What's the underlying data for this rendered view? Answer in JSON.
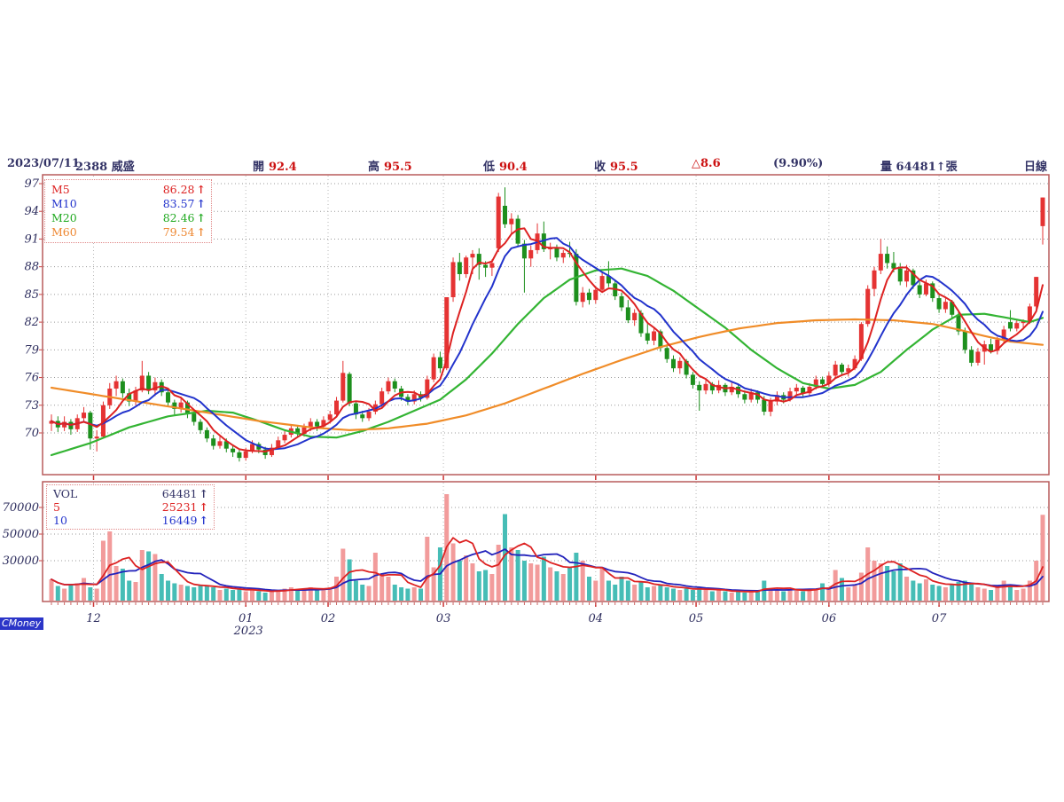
{
  "header": {
    "date": "2023/07/11",
    "stock": "2388 威盛",
    "open_label": "開",
    "open": "92.4",
    "high_label": "高",
    "high": "95.5",
    "low_label": "低",
    "low": "90.4",
    "close_label": "收",
    "close": "95.5",
    "change": "△8.6",
    "change_pct": "(9.90%)",
    "volume_text": "量 64481↑張",
    "period": "日線"
  },
  "price_legend": [
    {
      "label": "M5",
      "value": "86.28",
      "arrow": "↑",
      "color": "#dd2222"
    },
    {
      "label": "M10",
      "value": "83.57",
      "arrow": "↑",
      "color": "#2233cc"
    },
    {
      "label": "M20",
      "value": "82.46",
      "arrow": "↑",
      "color": "#22aa22"
    },
    {
      "label": "M60",
      "value": "79.54",
      "arrow": "↑",
      "color": "#ee8833"
    }
  ],
  "volume_legend": [
    {
      "label": "VOL",
      "value": "64481",
      "arrow": "↑",
      "color": "#333366"
    },
    {
      "label": "5",
      "value": "25231",
      "arrow": "↑",
      "color": "#dd2222"
    },
    {
      "label": "10",
      "value": "16449",
      "arrow": "↑",
      "color": "#2233cc"
    }
  ],
  "watermark": "CMoney",
  "colors": {
    "up": "#e53333",
    "down": "#1d8f1d",
    "ma5": "#dd2222",
    "ma10": "#2233cc",
    "ma20": "#33b433",
    "ma60": "#f08c28",
    "vol_up": "#f29b9b",
    "vol_down": "#46bdb6",
    "vma5": "#dd2222",
    "vma10": "#2222bb",
    "panel_border": "#b85c5c",
    "grid": "#9a9a9a",
    "tick": "#cc4444",
    "axis_text": "#2e2e5e"
  },
  "chart_data": {
    "type": "candlestick+volume",
    "title": "2388 威盛 日線",
    "y_ticks": [
      97,
      94,
      91,
      88,
      85,
      82,
      79,
      76,
      73,
      70
    ],
    "price_range": [
      65.5,
      98.0
    ],
    "volume_ticks": [
      70000,
      50000,
      30000
    ],
    "volume_range": [
      0,
      89000
    ],
    "year_label": "2023",
    "months": [
      {
        "label": "12",
        "day": 6.5
      },
      {
        "label": "01",
        "day": 30,
        "year": "2023"
      },
      {
        "label": "02",
        "day": 42.7
      },
      {
        "label": "03",
        "day": 60.5
      },
      {
        "label": "04",
        "day": 84
      },
      {
        "label": "05",
        "day": 99.5
      },
      {
        "label": "06",
        "day": 120
      },
      {
        "label": "07",
        "day": 137
      }
    ],
    "candles": [
      [
        71.0,
        72.0,
        70.2,
        71.3,
        16000
      ],
      [
        71.3,
        71.8,
        70.1,
        70.6,
        11000
      ],
      [
        70.6,
        71.8,
        70.2,
        71.2,
        9000
      ],
      [
        71.2,
        71.5,
        69.8,
        70.4,
        12000
      ],
      [
        70.4,
        72.0,
        70.1,
        71.6,
        13000
      ],
      [
        71.6,
        72.8,
        71.2,
        72.2,
        17000
      ],
      [
        72.2,
        72.4,
        68.2,
        69.4,
        10000
      ],
      [
        69.4,
        70.3,
        68.0,
        69.6,
        9000
      ],
      [
        69.6,
        73.4,
        69.5,
        73.0,
        45000
      ],
      [
        73.0,
        75.4,
        72.6,
        74.8,
        52000
      ],
      [
        74.8,
        76.2,
        74.0,
        75.6,
        26000
      ],
      [
        75.6,
        75.9,
        73.8,
        74.3,
        24000
      ],
      [
        74.3,
        74.8,
        72.9,
        73.4,
        15000
      ],
      [
        73.4,
        75.0,
        73.0,
        74.6,
        14000
      ],
      [
        74.6,
        77.8,
        74.4,
        76.2,
        38000
      ],
      [
        76.2,
        76.6,
        74.2,
        74.6,
        37000
      ],
      [
        74.6,
        76.0,
        74.0,
        75.5,
        35000
      ],
      [
        75.5,
        75.8,
        74.0,
        74.4,
        20000
      ],
      [
        74.4,
        74.6,
        72.8,
        73.3,
        15000
      ],
      [
        73.3,
        73.6,
        72.0,
        72.6,
        13000
      ],
      [
        72.6,
        73.8,
        72.2,
        73.3,
        12000
      ],
      [
        73.3,
        73.5,
        71.6,
        72.1,
        11000
      ],
      [
        72.1,
        72.4,
        70.8,
        71.2,
        10000
      ],
      [
        71.2,
        71.5,
        69.9,
        70.3,
        12000
      ],
      [
        70.3,
        70.6,
        69.0,
        69.4,
        11000
      ],
      [
        69.4,
        69.8,
        68.2,
        68.6,
        10000
      ],
      [
        68.6,
        69.6,
        68.3,
        69.1,
        8000
      ],
      [
        69.1,
        69.4,
        67.9,
        68.3,
        9000
      ],
      [
        68.3,
        68.6,
        67.4,
        67.9,
        8000
      ],
      [
        67.9,
        68.2,
        66.9,
        67.3,
        9000
      ],
      [
        67.3,
        68.4,
        67.0,
        68.0,
        7000
      ],
      [
        68.0,
        69.2,
        67.8,
        68.8,
        8000
      ],
      [
        68.8,
        69.0,
        67.8,
        68.2,
        7000
      ],
      [
        68.2,
        68.5,
        67.2,
        67.6,
        6000
      ],
      [
        67.6,
        68.8,
        67.4,
        68.4,
        7000
      ],
      [
        68.4,
        69.6,
        68.2,
        69.2,
        8000
      ],
      [
        69.2,
        70.2,
        68.9,
        69.8,
        9000
      ],
      [
        69.8,
        70.9,
        69.5,
        70.5,
        10000
      ],
      [
        70.5,
        70.8,
        69.5,
        69.9,
        8000
      ],
      [
        69.9,
        71.0,
        69.6,
        70.6,
        9000
      ],
      [
        70.6,
        71.6,
        70.2,
        71.2,
        10000
      ],
      [
        71.2,
        71.5,
        70.2,
        70.7,
        8000
      ],
      [
        70.7,
        71.8,
        70.4,
        71.4,
        9000
      ],
      [
        71.4,
        72.4,
        71.0,
        72.0,
        10000
      ],
      [
        72.0,
        73.9,
        71.8,
        73.5,
        18000
      ],
      [
        73.5,
        77.8,
        73.3,
        76.5,
        39000
      ],
      [
        76.4,
        76.6,
        72.9,
        73.2,
        31000
      ],
      [
        73.2,
        73.5,
        71.5,
        72.0,
        15000
      ],
      [
        72.0,
        72.4,
        71.2,
        71.6,
        12000
      ],
      [
        71.6,
        72.7,
        71.3,
        72.3,
        11000
      ],
      [
        72.3,
        73.5,
        72.0,
        73.1,
        36000
      ],
      [
        73.1,
        74.9,
        72.8,
        74.5,
        20000
      ],
      [
        74.5,
        76.0,
        74.2,
        75.6,
        18000
      ],
      [
        75.6,
        75.9,
        74.4,
        74.8,
        12000
      ],
      [
        74.8,
        75.1,
        73.5,
        73.9,
        10000
      ],
      [
        73.9,
        74.2,
        73.0,
        73.4,
        9000
      ],
      [
        73.4,
        74.6,
        73.1,
        74.2,
        10000
      ],
      [
        74.2,
        74.5,
        73.4,
        73.8,
        9000
      ],
      [
        73.8,
        76.2,
        73.6,
        75.8,
        48000
      ],
      [
        75.8,
        78.6,
        75.5,
        78.2,
        25000
      ],
      [
        78.2,
        78.8,
        76.5,
        77.0,
        40000
      ],
      [
        77.0,
        84.7,
        76.8,
        84.7,
        80000
      ],
      [
        84.7,
        89.0,
        84.2,
        88.5,
        43000
      ],
      [
        88.5,
        89.5,
        86.5,
        87.2,
        30000
      ],
      [
        87.2,
        89.2,
        86.8,
        89.0,
        34000
      ],
      [
        89.0,
        89.8,
        87.2,
        89.4,
        28000
      ],
      [
        89.4,
        90.0,
        86.6,
        88.2,
        22000
      ],
      [
        88.2,
        88.6,
        86.9,
        87.9,
        23000
      ],
      [
        87.9,
        88.8,
        87.0,
        88.4,
        20000
      ],
      [
        90.0,
        96.0,
        89.6,
        95.6,
        42000
      ],
      [
        94.6,
        96.6,
        92.2,
        92.6,
        65000
      ],
      [
        92.6,
        93.8,
        91.5,
        93.2,
        40000
      ],
      [
        93.2,
        93.6,
        90.2,
        90.5,
        38000
      ],
      [
        90.5,
        90.9,
        85.2,
        88.9,
        30000
      ],
      [
        88.9,
        90.3,
        88.0,
        89.8,
        28000
      ],
      [
        89.8,
        92.7,
        89.4,
        91.6,
        27000
      ],
      [
        91.6,
        92.9,
        89.6,
        89.9,
        33000
      ],
      [
        89.9,
        90.6,
        88.8,
        90.0,
        25000
      ],
      [
        90.0,
        90.4,
        88.6,
        89.0,
        22000
      ],
      [
        89.0,
        89.8,
        88.4,
        89.5,
        20000
      ],
      [
        89.5,
        90.7,
        89.0,
        89.4,
        25000
      ],
      [
        89.4,
        89.9,
        83.8,
        84.2,
        36000
      ],
      [
        84.2,
        85.8,
        83.6,
        85.2,
        30000
      ],
      [
        85.2,
        85.6,
        83.9,
        84.4,
        18000
      ],
      [
        84.4,
        85.9,
        84.0,
        85.5,
        15000
      ],
      [
        85.5,
        87.4,
        85.2,
        87.0,
        25000
      ],
      [
        87.0,
        88.6,
        85.8,
        86.2,
        15000
      ],
      [
        86.2,
        86.6,
        84.4,
        84.8,
        12000
      ],
      [
        84.8,
        85.2,
        83.2,
        83.6,
        18000
      ],
      [
        83.6,
        84.4,
        81.9,
        82.2,
        15000
      ],
      [
        82.2,
        83.4,
        81.6,
        83.0,
        12000
      ],
      [
        83.0,
        83.3,
        80.4,
        80.8,
        14000
      ],
      [
        80.8,
        81.8,
        79.6,
        80.0,
        10000
      ],
      [
        80.0,
        81.4,
        79.5,
        81.0,
        11000
      ],
      [
        81.0,
        81.2,
        78.8,
        79.2,
        12000
      ],
      [
        79.2,
        79.6,
        77.6,
        78.0,
        10000
      ],
      [
        78.0,
        78.4,
        76.6,
        77.0,
        9000
      ],
      [
        77.0,
        78.2,
        76.4,
        77.8,
        8000
      ],
      [
        77.8,
        78.0,
        75.9,
        76.3,
        9000
      ],
      [
        76.3,
        76.6,
        74.8,
        75.2,
        8000
      ],
      [
        75.2,
        75.6,
        72.4,
        74.6,
        10000
      ],
      [
        74.6,
        75.8,
        74.2,
        75.3,
        8000
      ],
      [
        75.3,
        75.5,
        74.2,
        74.6,
        7000
      ],
      [
        74.6,
        75.7,
        74.3,
        75.2,
        8000
      ],
      [
        75.2,
        75.4,
        74.0,
        74.4,
        7000
      ],
      [
        74.4,
        75.5,
        74.1,
        75.0,
        6000
      ],
      [
        75.0,
        75.2,
        73.8,
        74.2,
        7000
      ],
      [
        74.2,
        74.6,
        73.2,
        73.6,
        6000
      ],
      [
        73.6,
        74.8,
        73.3,
        74.4,
        8000
      ],
      [
        74.4,
        74.6,
        73.2,
        73.6,
        7000
      ],
      [
        73.6,
        74.0,
        71.9,
        72.3,
        15000
      ],
      [
        72.3,
        73.8,
        71.8,
        73.4,
        9000
      ],
      [
        73.4,
        74.5,
        73.0,
        74.1,
        8000
      ],
      [
        74.1,
        74.4,
        73.2,
        73.6,
        7000
      ],
      [
        73.6,
        74.9,
        73.4,
        74.5,
        8000
      ],
      [
        74.5,
        75.3,
        74.0,
        74.9,
        9000
      ],
      [
        74.9,
        75.1,
        73.9,
        74.3,
        7000
      ],
      [
        74.3,
        75.4,
        74.0,
        75.0,
        8000
      ],
      [
        75.0,
        76.2,
        74.7,
        75.8,
        9000
      ],
      [
        75.8,
        76.1,
        74.9,
        75.3,
        13000
      ],
      [
        75.3,
        76.6,
        75.0,
        76.2,
        10000
      ],
      [
        76.2,
        77.8,
        75.9,
        77.4,
        23000
      ],
      [
        77.4,
        77.6,
        76.2,
        76.6,
        17000
      ],
      [
        76.6,
        77.4,
        76.1,
        77.0,
        10000
      ],
      [
        77.0,
        78.4,
        76.8,
        78.0,
        12000
      ],
      [
        78.0,
        82.0,
        77.8,
        81.8,
        21000
      ],
      [
        81.8,
        86.0,
        81.5,
        85.6,
        40000
      ],
      [
        85.6,
        88.0,
        84.8,
        87.6,
        30000
      ],
      [
        87.6,
        91.0,
        87.2,
        89.4,
        28000
      ],
      [
        89.4,
        90.2,
        87.8,
        88.4,
        26000
      ],
      [
        88.4,
        89.6,
        87.4,
        87.8,
        22000
      ],
      [
        87.8,
        88.4,
        86.0,
        86.4,
        28000
      ],
      [
        86.4,
        88.2,
        85.8,
        87.6,
        18000
      ],
      [
        87.6,
        87.8,
        85.6,
        86.0,
        15000
      ],
      [
        86.0,
        86.4,
        84.6,
        85.0,
        13000
      ],
      [
        85.0,
        86.6,
        84.8,
        86.2,
        16000
      ],
      [
        86.2,
        86.4,
        84.2,
        84.6,
        12000
      ],
      [
        84.6,
        85.0,
        83.0,
        83.4,
        11000
      ],
      [
        83.4,
        84.6,
        83.0,
        84.2,
        10000
      ],
      [
        84.2,
        84.4,
        82.4,
        82.8,
        12000
      ],
      [
        82.8,
        83.2,
        80.6,
        81.0,
        14000
      ],
      [
        81.0,
        81.4,
        78.6,
        79.0,
        15000
      ],
      [
        79.0,
        79.4,
        77.2,
        77.6,
        13000
      ],
      [
        77.6,
        79.2,
        77.3,
        78.8,
        10000
      ],
      [
        78.8,
        80.0,
        77.4,
        79.6,
        9000
      ],
      [
        79.6,
        80.2,
        78.6,
        78.9,
        8000
      ],
      [
        78.9,
        80.4,
        78.5,
        80.1,
        10000
      ],
      [
        80.1,
        81.6,
        79.8,
        81.2,
        15000
      ],
      [
        82.0,
        83.3,
        81.0,
        81.3,
        12000
      ],
      [
        81.3,
        82.2,
        81.0,
        81.9,
        8000
      ],
      [
        81.9,
        82.3,
        81.2,
        82.1,
        9000
      ],
      [
        82.1,
        84.0,
        81.8,
        83.7,
        15000
      ],
      [
        83.7,
        86.9,
        83.4,
        86.9,
        30000
      ],
      [
        92.4,
        95.5,
        90.4,
        95.5,
        64481
      ]
    ],
    "ma20_points": [
      [
        0,
        67.6
      ],
      [
        6,
        68.9
      ],
      [
        12,
        70.6
      ],
      [
        18,
        71.8
      ],
      [
        24,
        72.4
      ],
      [
        28,
        72.2
      ],
      [
        32,
        71.3
      ],
      [
        36,
        70.3
      ],
      [
        40,
        69.6
      ],
      [
        44,
        69.5
      ],
      [
        48,
        70.2
      ],
      [
        52,
        71.2
      ],
      [
        56,
        72.4
      ],
      [
        60,
        73.6
      ],
      [
        64,
        75.8
      ],
      [
        68,
        78.6
      ],
      [
        72,
        81.8
      ],
      [
        76,
        84.6
      ],
      [
        80,
        86.6
      ],
      [
        84,
        87.6
      ],
      [
        88,
        87.8
      ],
      [
        92,
        87.0
      ],
      [
        96,
        85.4
      ],
      [
        100,
        83.4
      ],
      [
        104,
        81.4
      ],
      [
        108,
        79.0
      ],
      [
        112,
        77.0
      ],
      [
        116,
        75.4
      ],
      [
        120,
        74.8
      ],
      [
        124,
        75.2
      ],
      [
        128,
        76.6
      ],
      [
        132,
        79.0
      ],
      [
        136,
        81.2
      ],
      [
        140,
        82.8
      ],
      [
        144,
        82.9
      ],
      [
        148,
        82.4
      ],
      [
        151,
        82.0
      ],
      [
        153,
        82.46
      ]
    ],
    "ma60_points": [
      [
        0,
        74.9
      ],
      [
        8,
        74.0
      ],
      [
        16,
        73.1
      ],
      [
        24,
        72.2
      ],
      [
        32,
        71.3
      ],
      [
        40,
        70.6
      ],
      [
        46,
        70.3
      ],
      [
        52,
        70.5
      ],
      [
        58,
        71.0
      ],
      [
        64,
        71.9
      ],
      [
        70,
        73.2
      ],
      [
        76,
        74.8
      ],
      [
        82,
        76.4
      ],
      [
        88,
        77.9
      ],
      [
        94,
        79.3
      ],
      [
        100,
        80.4
      ],
      [
        106,
        81.3
      ],
      [
        112,
        81.9
      ],
      [
        118,
        82.2
      ],
      [
        124,
        82.3
      ],
      [
        130,
        82.2
      ],
      [
        136,
        81.8
      ],
      [
        140,
        81.2
      ],
      [
        144,
        80.5
      ],
      [
        148,
        79.9
      ],
      [
        153,
        79.54
      ]
    ],
    "ma5_window": 5,
    "ma10_window": 10,
    "vol_ma_windows": [
      5,
      10
    ]
  }
}
